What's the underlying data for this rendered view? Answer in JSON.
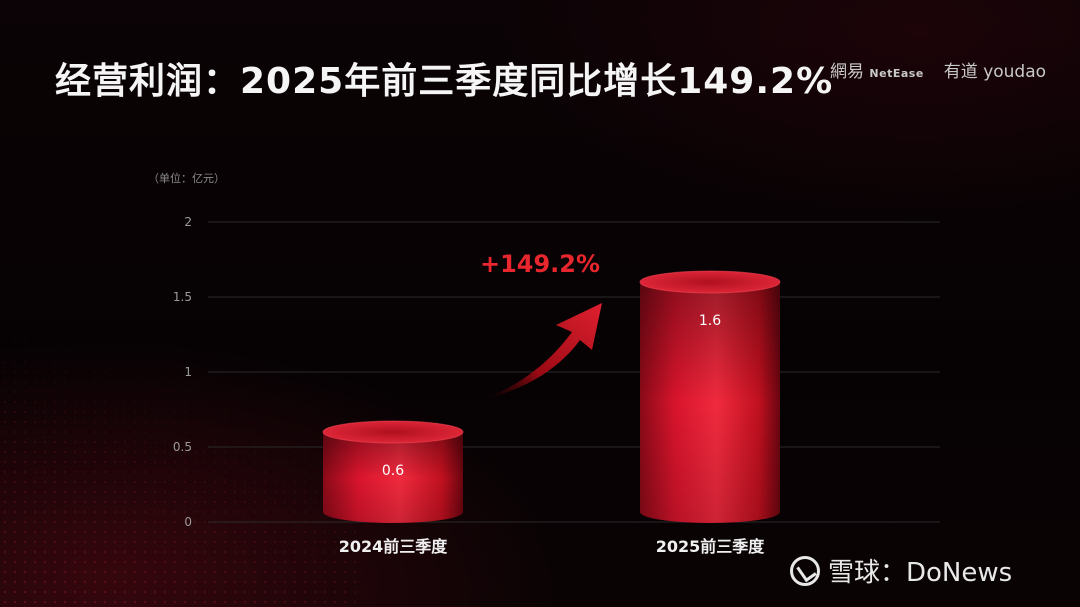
{
  "header": {
    "title": "经营利润：2025年前三季度同比增长149.2%"
  },
  "logos": {
    "netease_cn": "網易",
    "netease_en": "NetEase",
    "youdao_cn": "有道",
    "youdao_en": "youdao"
  },
  "watermark": {
    "text": "雪球：DoNews"
  },
  "chart_data": {
    "type": "bar",
    "unit_label": "（单位：亿元）",
    "categories": [
      "2024前三季度",
      "2025前三季度"
    ],
    "values": [
      0.6,
      1.6
    ],
    "value_labels": [
      "0.6",
      "1.6"
    ],
    "ylim": [
      0,
      2
    ],
    "yticks": [
      0,
      0.5,
      1,
      1.5,
      2
    ],
    "ytick_labels": [
      "0",
      "0.5",
      "1",
      "1.5",
      "2"
    ],
    "grid": true,
    "annotation": "+149.2%",
    "colors": {
      "bar": "#d8142c",
      "bar_dark": "#7a0612",
      "annotation": "#e8262e",
      "grid": "#2a2a2a"
    }
  }
}
